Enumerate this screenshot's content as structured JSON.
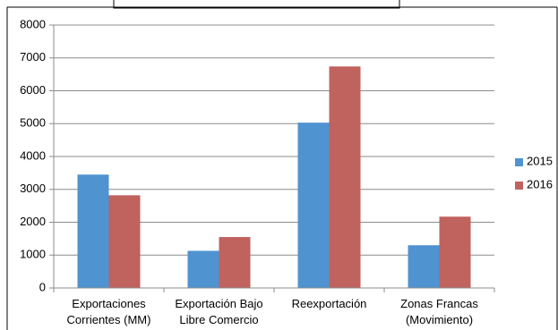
{
  "chart_data": {
    "type": "bar",
    "categories": [
      [
        "Exportaciones",
        "Corrientes (MM)"
      ],
      [
        "Exportación Bajo",
        "Libre Comercio"
      ],
      [
        "Reexportación"
      ],
      [
        "Zonas Francas",
        "(Movimiento)"
      ]
    ],
    "series": [
      {
        "name": "2015",
        "color": "#4f93d1",
        "values": [
          3450,
          1130,
          5030,
          1300
        ]
      },
      {
        "name": "2016",
        "color": "#c0625e",
        "values": [
          2820,
          1550,
          6740,
          2170
        ]
      }
    ],
    "ylim": [
      0,
      8000
    ],
    "yticks": [
      0,
      1000,
      2000,
      3000,
      4000,
      5000,
      6000,
      7000,
      8000
    ],
    "grid": true,
    "legend_position": "right",
    "title": "",
    "xlabel": "",
    "ylabel": ""
  }
}
